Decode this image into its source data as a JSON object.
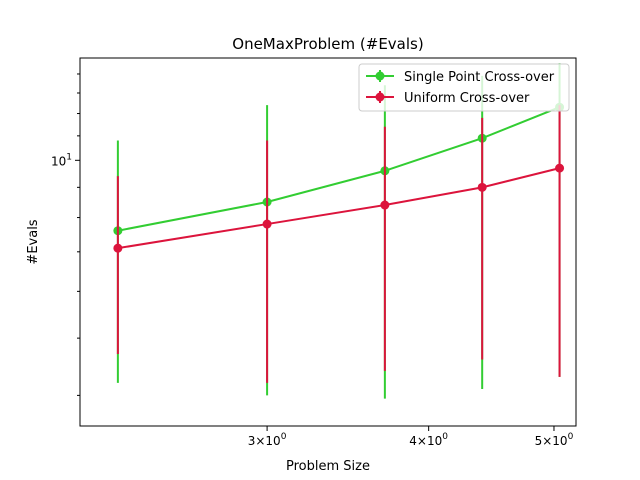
{
  "chart_data": {
    "type": "line",
    "title": "OneMaxProblem (#Evals)",
    "xlabel": "Problem Size",
    "ylabel": "#Evals",
    "x_scale": "log",
    "y_scale": "log",
    "xlim": [
      2.15,
      5.2
    ],
    "ylim": [
      3.55,
      14.9
    ],
    "x_ticks": [
      {
        "value": 3,
        "base": "3×10",
        "exp": "0"
      },
      {
        "value": 4,
        "base": "4×10",
        "exp": "0"
      },
      {
        "value": 5,
        "base": "5×10",
        "exp": "0"
      }
    ],
    "y_ticks": [
      {
        "value": 10,
        "base": "10",
        "exp": "1"
      }
    ],
    "legend_position": "top-right",
    "grid": false,
    "x": [
      2.3,
      3.0,
      3.7,
      4.4,
      5.05
    ],
    "series": [
      {
        "name": "Single Point Cross-over",
        "color": "#32cd32",
        "values": [
          7.6,
          8.5,
          9.6,
          10.9,
          12.3
        ],
        "err_low": [
          4.2,
          4.0,
          3.95,
          4.1,
          4.3
        ],
        "err_high": [
          10.8,
          12.4,
          13.4,
          13.9,
          14.6
        ]
      },
      {
        "name": "Uniform Cross-over",
        "color": "#dc143c",
        "values": [
          7.1,
          7.8,
          8.4,
          9.0,
          9.7
        ],
        "err_low": [
          4.7,
          4.2,
          4.4,
          4.6,
          4.3
        ],
        "err_high": [
          9.4,
          10.8,
          11.4,
          11.8,
          12.4
        ]
      }
    ]
  }
}
